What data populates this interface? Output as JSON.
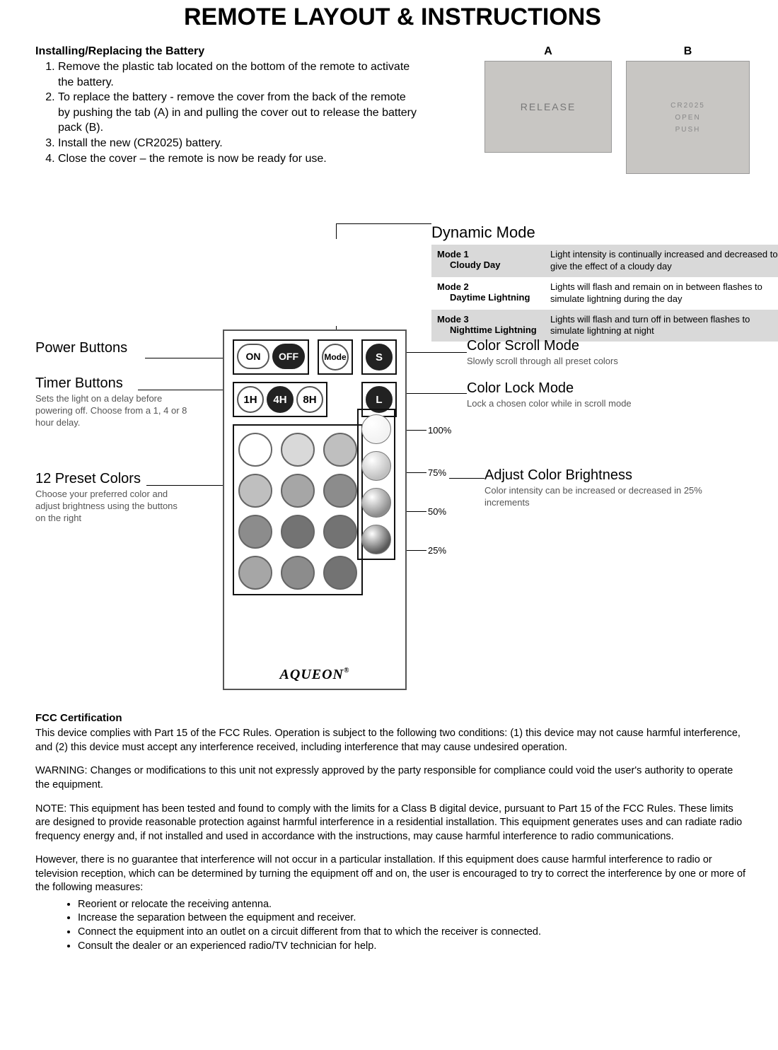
{
  "title": "REMOTE LAYOUT & INSTRUCTIONS",
  "battery": {
    "heading": "Installing/Replacing the Battery",
    "steps": [
      "Remove the plastic tab located on the bottom of the remote to activate the battery.",
      "To replace the battery - remove the cover from the back of the remote by pushing the tab (A) in and pulling the cover out to release the battery pack (B).",
      "Install the new (CR2025) battery.",
      "Close the cover – the remote is now be ready for use."
    ],
    "img_a_label": "A",
    "img_b_label": "B",
    "img_a_text": "RELEASE",
    "img_b_text1": "CR2025",
    "img_b_text2": "OPEN",
    "img_b_text3": "PUSH"
  },
  "remote": {
    "row1": [
      "ON",
      "OFF",
      "Mode",
      "S"
    ],
    "row2": [
      "1H",
      "4H",
      "8H",
      "L"
    ],
    "preset_colors": [
      "#ffffff",
      "#d9d9d9",
      "#bfbfbf",
      "#bfbfbf",
      "#a6a6a6",
      "#8c8c8c",
      "#8c8c8c",
      "#737373",
      "#737373",
      "#a6a6a6",
      "#8c8c8c",
      "#737373"
    ],
    "brightness_spheres": [
      {
        "fill": "#f2f2f2"
      },
      {
        "fill": "#bfbfbf"
      },
      {
        "fill": "#8c8c8c"
      },
      {
        "fill": "#595959"
      }
    ],
    "brand": "AQUEON",
    "brand_suffix": "®"
  },
  "callouts": {
    "power": {
      "h": "Power Buttons"
    },
    "timer": {
      "h": "Timer Buttons",
      "sub": "Sets the light on a delay before powering off. Choose from a 1, 4 or 8 hour delay."
    },
    "presets": {
      "h": "12 Preset Colors",
      "sub": "Choose your preferred color and adjust brightness using the buttons on the right"
    },
    "dynamic": {
      "h": "Dynamic Mode",
      "rows": [
        {
          "n": "Mode 1",
          "s": "Cloudy Day",
          "d": "Light intensity is continually increased and decreased to give the effect of a cloudy day"
        },
        {
          "n": "Mode 2",
          "s": "Daytime Lightning",
          "d": "Lights will flash and remain on in between flashes to simulate lightning during the day"
        },
        {
          "n": "Mode 3",
          "s": "Nighttime Lightning",
          "d": "Lights will flash and turn off in between flashes to simulate lightning at night"
        }
      ]
    },
    "scroll": {
      "h": "Color Scroll Mode",
      "sub": "Slowly scroll through all preset colors"
    },
    "lock": {
      "h": "Color Lock Mode",
      "sub": "Lock a chosen color while in scroll mode"
    },
    "brightness": {
      "h": "Adjust Color Brightness",
      "sub": "Color intensity can be increased or decreased in 25% increments"
    },
    "pct": [
      "100%",
      "75%",
      "50%",
      "25%"
    ]
  },
  "fcc": {
    "heading": "FCC Certification",
    "p1": "This device complies with Part 15 of the FCC Rules. Operation is subject to the following two conditions: (1) this device may not cause harmful interference, and (2) this device must accept any interference received, including interference that may cause undesired operation.",
    "p2": "WARNING: Changes or modifications to this unit not expressly approved by the party responsible for compliance could void the user's authority to operate the equipment.",
    "p3": "NOTE: This equipment has been tested and found to comply with the limits for a Class B digital device, pursuant to Part 15 of the FCC Rules. These limits are designed to provide reasonable protection against harmful interference in a residential installation. This equipment generates uses and can radiate radio frequency energy and, if not installed and used in accordance with the instructions, may cause harmful interference to radio communications.",
    "p4": "However, there is no guarantee that interference will not occur in a particular installation. If this equipment does cause harmful interference to radio or television reception, which can be determined by turning the equipment off and on, the user is encouraged to try to correct the interference by one or more of the following measures:",
    "bullets": [
      "Reorient or relocate the receiving antenna.",
      "Increase the separation between the equipment and receiver.",
      "Connect the equipment into an outlet on a circuit different from that to which the receiver is connected.",
      "Consult the dealer or an experienced radio/TV technician for help."
    ]
  }
}
